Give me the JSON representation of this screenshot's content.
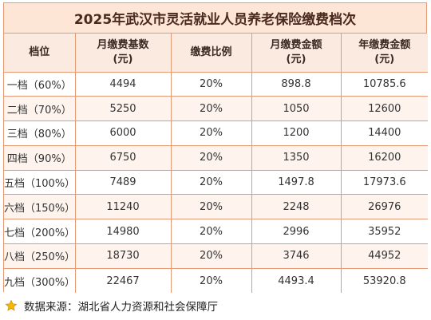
{
  "title": "2025年武汉市灵活就业人员养老保险缴费档次",
  "headers": {
    "level": "档位",
    "base_line1": "月缴费基数",
    "base_line2": "(元)",
    "ratio": "缴费比例",
    "monthly_line1": "月缴费金额",
    "monthly_line2": "(元)",
    "annual_line1": "年缴费金额",
    "annual_line2": "(元)"
  },
  "rows": [
    {
      "level": "一档（60%）",
      "base": "4494",
      "ratio": "20%",
      "monthly": "898.8",
      "annual": "10785.6"
    },
    {
      "level": "二档（70%）",
      "base": "5250",
      "ratio": "20%",
      "monthly": "1050",
      "annual": "12600"
    },
    {
      "level": "三档（80%）",
      "base": "6000",
      "ratio": "20%",
      "monthly": "1200",
      "annual": "14400"
    },
    {
      "level": "四档（90%）",
      "base": "6750",
      "ratio": "20%",
      "monthly": "1350",
      "annual": "16200"
    },
    {
      "level": "五档（100%）",
      "base": "7489",
      "ratio": "20%",
      "monthly": "1497.8",
      "annual": "17973.6"
    },
    {
      "level": "六档（150%）",
      "base": "11240",
      "ratio": "20%",
      "monthly": "2248",
      "annual": "26976"
    },
    {
      "level": "七档（200%）",
      "base": "14980",
      "ratio": "20%",
      "monthly": "2996",
      "annual": "35952"
    },
    {
      "level": "八档（250%）",
      "base": "18730",
      "ratio": "20%",
      "monthly": "3746",
      "annual": "44952"
    },
    {
      "level": "九档（300%）",
      "base": "22467",
      "ratio": "20%",
      "monthly": "4493.4",
      "annual": "53920.8"
    }
  ],
  "source": "数据来源：湖北省人力资源和社会保障厅",
  "source_icon": "star-icon",
  "colors": {
    "border": "#e59a75",
    "title_bg": "#fde6d6",
    "header_bg": "#fbeadf",
    "stripe_bg": "#fef4ed",
    "star": "#f5b800"
  }
}
